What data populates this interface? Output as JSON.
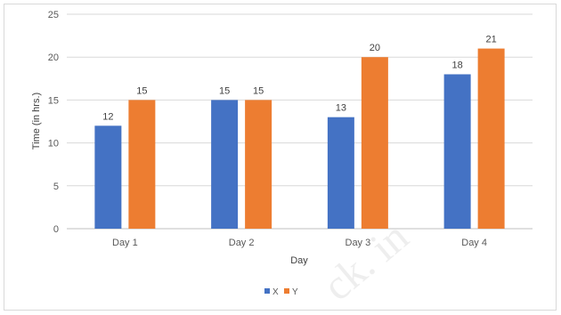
{
  "chart_data": {
    "type": "bar",
    "categories": [
      "Day 1",
      "Day 2",
      "Day 3",
      "Day 4"
    ],
    "series": [
      {
        "name": "X",
        "values": [
          12,
          15,
          13,
          18
        ],
        "color": "#4472c4"
      },
      {
        "name": "Y",
        "values": [
          15,
          15,
          20,
          21
        ],
        "color": "#ed7d31"
      }
    ],
    "title": "",
    "xlabel": "Day",
    "ylabel": "Time (in hrs.)",
    "ylim": [
      0,
      25
    ],
    "yticks": [
      0,
      5,
      10,
      15,
      20,
      25
    ],
    "grid": true,
    "legend_position": "bottom",
    "data_labels": true
  },
  "watermark": "ck. in"
}
